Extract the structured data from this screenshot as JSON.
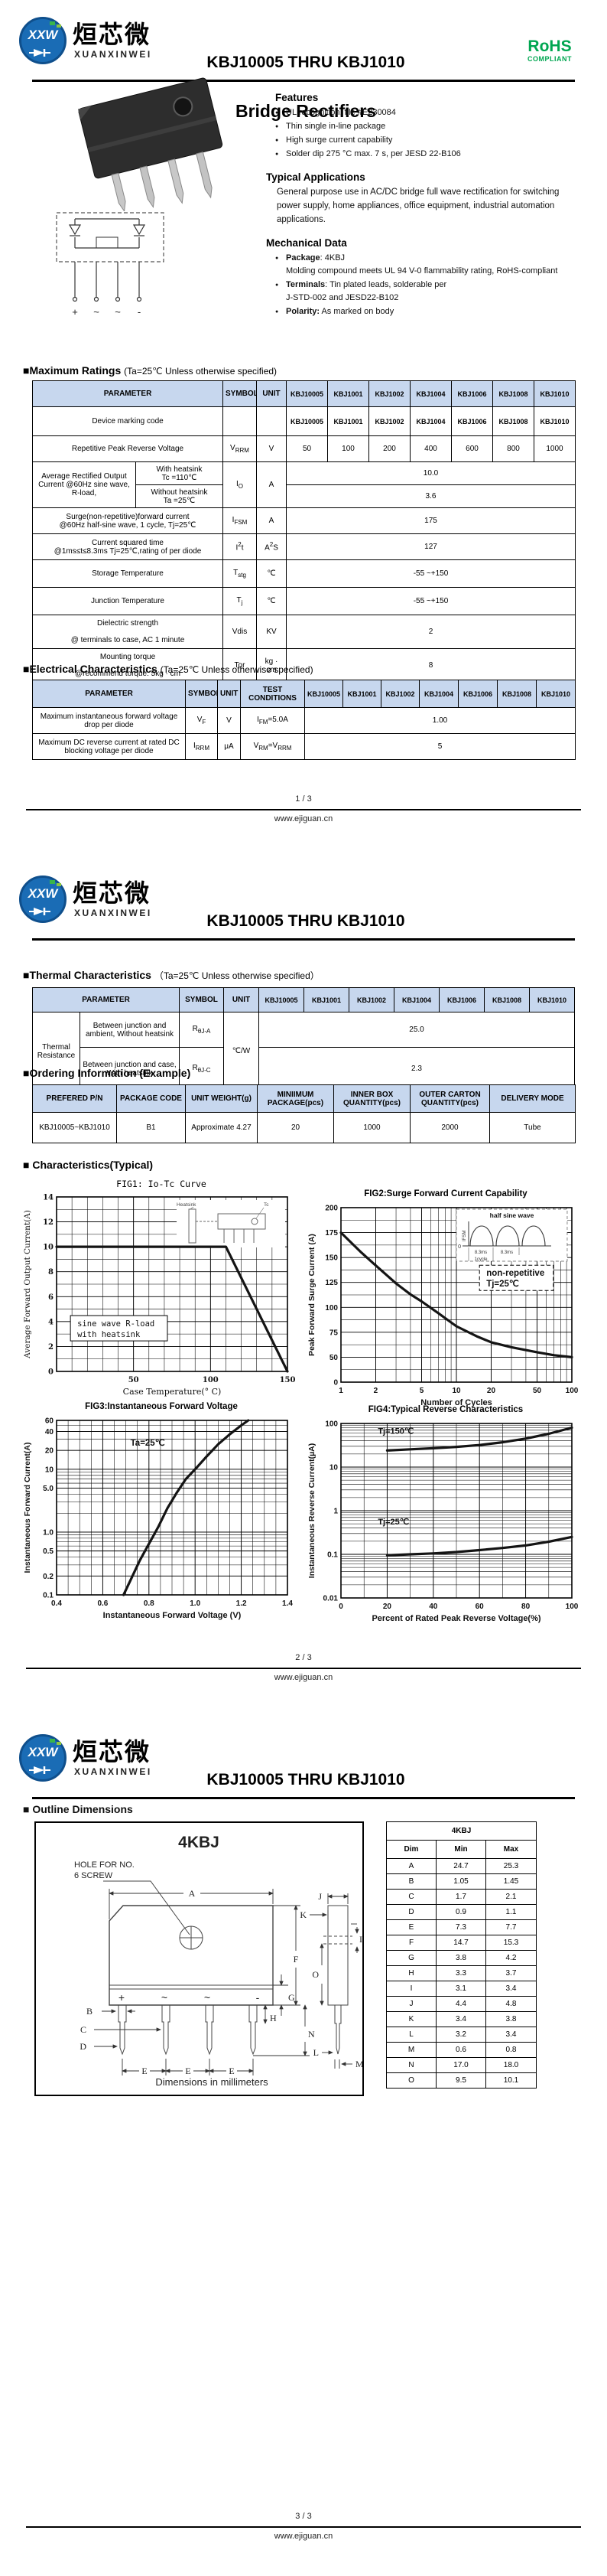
{
  "header": {
    "title": "KBJ10005 THRU KBJ1010",
    "logo": {
      "badge": "XXW",
      "cn": "烜芯微",
      "en": "XUANXINWEI"
    },
    "rohs": {
      "line1": "RoHS",
      "line2": "COMPLIANT"
    }
  },
  "footer": {
    "url": "www.ejiguan.cn",
    "pages": [
      "1 / 3",
      "2 / 3",
      "3 / 3"
    ]
  },
  "page1": {
    "product_title": "Bridge Rectifiers",
    "features": {
      "heading": "Features",
      "items": [
        "UL recognition, file #E230084",
        "Thin single in-line package",
        "High surge current capability",
        "Solder dip 275 °C max. 7 s, per JESD 22-B106"
      ]
    },
    "applications": {
      "heading": "Typical Applications",
      "text": "General purpose use in AC/DC bridge full wave rectification for switching power supply, home appliances, office equipment, industrial automation applications."
    },
    "mechanical": {
      "heading": "Mechanical Data",
      "bullets": [
        {
          "label": "Package",
          "rest": ": 4KBJ",
          "cont": "Molding compound meets UL 94 V-0 flammability rating, RoHS-compliant"
        },
        {
          "label": "Terminals",
          "rest": ": Tin plated leads, solderable per",
          "cont": "J-STD-002 and JESD22-B102"
        },
        {
          "label": "Polarity:",
          "rest": " As marked on body",
          "cont": ""
        }
      ]
    },
    "schematic": {
      "terminals": [
        "+",
        "~",
        "~",
        "-"
      ]
    },
    "max_ratings": {
      "title": "■Maximum Ratings",
      "cond": "(Ta=25℃ Unless otherwise specified)",
      "head": {
        "parameter": "PARAMETER",
        "symbol": "SYMBOL",
        "unit": "UNIT"
      },
      "parts": [
        "KBJ10005",
        "KBJ1001",
        "KBJ1002",
        "KBJ1004",
        "KBJ1006",
        "KBJ1008",
        "KBJ1010"
      ],
      "rows": {
        "marking": {
          "param": "Device marking code",
          "values": [
            "KBJ10005",
            "KBJ1001",
            "KBJ1002",
            "KBJ1004",
            "KBJ1006",
            "KBJ1008",
            "KBJ1010"
          ]
        },
        "vrrm": {
          "param": "Repetitive Peak Reverse Voltage",
          "sym": {
            "m": "V",
            "s": "RRM"
          },
          "unit": "V",
          "values": [
            "50",
            "100",
            "200",
            "400",
            "600",
            "800",
            "1000"
          ]
        },
        "io": {
          "param": "Average Rectified Output Current @60Hz sine wave, R-load,",
          "sub1a": "With heatsink",
          "sub1b": "Tc =110℃",
          "sub2a": "Without heatsink",
          "sub2b": "Ta =25℃",
          "sym": {
            "m": "I",
            "s": "O"
          },
          "unit": "A",
          "v1": "10.0",
          "v2": "3.6"
        },
        "ifsm": {
          "p1": "Surge(non-repetitive)forward current",
          "p2": "@60Hz half-sine wave, 1 cycle,  Tj=25℃",
          "sym": {
            "m": "I",
            "s": "FSM"
          },
          "unit": "A",
          "value": "175"
        },
        "i2t": {
          "p1": "Current squared time",
          "p2": "@1ms≤t≤8.3ms Tj=25℃,rating of per diode",
          "sym": {
            "m": "I",
            "sup": "2",
            "m2": "t"
          },
          "unitp": {
            "m": "A",
            "sup": "2",
            "m2": "S"
          },
          "value": "127"
        },
        "tstg": {
          "param": "Storage Temperature",
          "sym": {
            "m": "T",
            "s": "stg"
          },
          "unit": "℃",
          "value": "-55 ~+150"
        },
        "tj": {
          "param": "Junction Temperature",
          "sym": {
            "m": "T",
            "s": "j"
          },
          "unit": "℃",
          "value": "-55 ~+150"
        },
        "vdis": {
          "p1": "Dielectric strength",
          "p2": "@ terminals to case, AC 1 minute",
          "sym": "Vdis",
          "unit": "KV",
          "value": "2"
        },
        "tor": {
          "p1": "Mounting torque",
          "p2": "@recommend torque: 5kg · cm",
          "sym": "Tor",
          "unit": "kg · cm",
          "value": "8"
        }
      }
    },
    "electrical": {
      "title": "■Electrical Characteristics",
      "cond": "(Ta=25℃ Unless otherwise specified)",
      "head": {
        "parameter": "PARAMETER",
        "symbol": "SYMBOL",
        "unit": "UNIT",
        "test": "TEST CONDITIONS"
      },
      "rows": {
        "vf": {
          "param": "Maximum instantaneous forward voltage drop per diode",
          "sym": {
            "m": "V",
            "s": "F"
          },
          "unit": "V",
          "test": {
            "m": "I",
            "s": "FM",
            "post": "=5.0A"
          },
          "value": "1.00"
        },
        "irrm": {
          "param": "Maximum DC reverse current at rated DC blocking voltage per diode",
          "sym": {
            "m": "I",
            "s": "RRM"
          },
          "unit": "μA",
          "test": {
            "m": "V",
            "s": "RM",
            "post": "=V",
            "s2": "RRM"
          },
          "value": "5"
        }
      }
    }
  },
  "page2": {
    "thermal": {
      "title": "■Thermal Characteristics",
      "cond": "（Ta=25℃ Unless otherwise specified）",
      "head": {
        "parameter": "PARAMETER",
        "symbol": "SYMBOL",
        "unit": "UNIT"
      },
      "parts": [
        "KBJ10005",
        "KBJ1001",
        "KBJ1002",
        "KBJ1004",
        "KBJ1006",
        "KBJ1008",
        "KBJ1010"
      ],
      "group": "Thermal Resistance",
      "unit": "℃/W",
      "rows": {
        "rja": {
          "cond": "Between junction and ambient, Without heatsink",
          "sym": {
            "m": "R",
            "s": "θJ-A"
          },
          "value": "25.0"
        },
        "rjc": {
          "cond": "Between junction and case, With heatsink",
          "sym": {
            "m": "R",
            "s": "θJ-C"
          },
          "value": "2.3"
        }
      }
    },
    "ordering": {
      "title": "■Ordering Information (Example)",
      "head": [
        "PREFERED P/N",
        "PACKAGE CODE",
        "UNIT WEIGHT(g)",
        "MINIIMUM PACKAGE(pcs)",
        "INNER BOX QUANTITY(pcs)",
        "OUTER CARTON QUANTITY(pcs)",
        "DELIVERY MODE"
      ],
      "row": [
        "KBJ10005~KBJ1010",
        "B1",
        "Approximate 4.27",
        "20",
        "1000",
        "2000",
        "Tube"
      ]
    },
    "charts_heading": "■ Characteristics(Typical)"
  },
  "chart_data": [
    {
      "id": "fig1",
      "type": "line",
      "title": "FIG1: Io-Tc Curve",
      "title_style": "mono",
      "x": {
        "type": "linear",
        "min": 0,
        "max": 150,
        "grid_step": 10,
        "ticks": [
          50,
          100,
          150
        ],
        "label": "Case Temperature(° C)"
      },
      "y": {
        "type": "linear",
        "min": 0,
        "max": 14,
        "grid_step": 1,
        "ticks": [
          0,
          2,
          4,
          6,
          8,
          10,
          12,
          14
        ],
        "label": "Average Forward Output Current(A)"
      },
      "series": [
        {
          "name": "Io",
          "points": [
            [
              0,
              10
            ],
            [
              110,
              10
            ],
            [
              150,
              0
            ]
          ]
        }
      ],
      "annotations": [
        {
          "text_lines": [
            "sine wave R-load",
            "with heatsink"
          ],
          "x": 0.06,
          "y": 0.68,
          "box": true,
          "w": 0.42,
          "h": 0.145,
          "font": "mono"
        }
      ],
      "inset": {
        "type": "heatsink",
        "labels": [
          "Heatsink",
          "Tc"
        ]
      }
    },
    {
      "id": "fig2",
      "type": "line",
      "title": "FIG2:Surge Forward Current Capability",
      "x": {
        "type": "log",
        "min": 1,
        "max": 100,
        "ticks": [
          1,
          2,
          5,
          10,
          20,
          50,
          100
        ],
        "label": "Number of Cycles"
      },
      "y": {
        "type": "ticklist",
        "ticks": [
          0,
          50,
          75,
          100,
          125,
          150,
          175,
          200
        ],
        "grid_mids": true,
        "label": "Peak Forward Surge Current (A)"
      },
      "series": [
        {
          "name": "IFSM",
          "points": [
            [
              1,
              175
            ],
            [
              1.5,
              155
            ],
            [
              2,
              142
            ],
            [
              3,
              124
            ],
            [
              4,
              113
            ],
            [
              5,
              106
            ],
            [
              7,
              94
            ],
            [
              10,
              81
            ],
            [
              15,
              71
            ],
            [
              20,
              65
            ],
            [
              30,
              60
            ],
            [
              50,
              55
            ],
            [
              70,
              52
            ],
            [
              100,
              50
            ]
          ]
        }
      ],
      "annotations": [
        {
          "text_lines": [
            "non-repetitive",
            "Tj=25℃"
          ],
          "x": 0.6,
          "y": 0.33,
          "box": true,
          "w": 0.32,
          "h": 0.145,
          "dashed": true
        }
      ],
      "inset": {
        "type": "halfsine",
        "labels": [
          "half sine wave",
          "IFSM",
          "0",
          "8.3ms",
          "8.3ms",
          "1cycle"
        ]
      }
    },
    {
      "id": "fig3",
      "type": "line",
      "title": "FIG3:Instantaneous Forward Voltage",
      "x": {
        "type": "linear",
        "min": 0.4,
        "max": 1.4,
        "grid_step": 0.05,
        "ticks": [
          0.4,
          0.6,
          0.8,
          1.0,
          1.2,
          1.4
        ],
        "tick_labels": [
          "0.4",
          "0.6",
          "0.8",
          "1.0",
          "1.2",
          "1.4"
        ],
        "label": "Instantaneous Forward Voltage (V)"
      },
      "y": {
        "type": "log",
        "min": 0.1,
        "max": 60,
        "ticks": [
          0.1,
          0.2,
          0.5,
          1,
          5,
          10,
          20,
          40,
          60
        ],
        "tick_labels": [
          "0.1",
          "0.2",
          "0.5",
          "1.0",
          "5.0",
          "10",
          "20",
          "40",
          "60"
        ],
        "label": "Instantaneous Forward Current(A)"
      },
      "series": [
        {
          "name": "VF",
          "points": [
            [
              0.69,
              0.1
            ],
            [
              0.72,
              0.17
            ],
            [
              0.76,
              0.35
            ],
            [
              0.8,
              0.65
            ],
            [
              0.84,
              1.2
            ],
            [
              0.88,
              2.4
            ],
            [
              0.92,
              4.2
            ],
            [
              0.96,
              7.0
            ],
            [
              1.0,
              10
            ],
            [
              1.05,
              16
            ],
            [
              1.1,
              25
            ],
            [
              1.15,
              36
            ],
            [
              1.2,
              50
            ],
            [
              1.23,
              60
            ]
          ]
        }
      ],
      "annotations": [
        {
          "text_lines": [
            "Ta=25℃"
          ],
          "x": 0.32,
          "y": 0.1,
          "box": false
        }
      ]
    },
    {
      "id": "fig4",
      "type": "line",
      "title": "FIG4:Typical Reverse Characteristics",
      "x": {
        "type": "linear",
        "min": 0,
        "max": 100,
        "grid_step": 10,
        "ticks": [
          0,
          20,
          40,
          60,
          80,
          100
        ],
        "label": "Percent of Rated Peak Reverse Voltage(%)"
      },
      "y": {
        "type": "log",
        "min": 0.01,
        "max": 100,
        "ticks": [
          0.01,
          0.1,
          1,
          10,
          100
        ],
        "tick_labels": [
          "0.01",
          "0.1",
          "1",
          "10",
          "100"
        ],
        "label": "Instantaneous Reverse Current(µA)"
      },
      "series": [
        {
          "name": "Tj=150℃",
          "points": [
            [
              20,
              24
            ],
            [
              30,
              25.5
            ],
            [
              40,
              27
            ],
            [
              50,
              29
            ],
            [
              60,
              32
            ],
            [
              70,
              37
            ],
            [
              80,
              45
            ],
            [
              90,
              58
            ],
            [
              100,
              80
            ]
          ],
          "label_at": [
            0.16,
            0.06
          ]
        },
        {
          "name": "Tj=25℃",
          "points": [
            [
              20,
              0.095
            ],
            [
              30,
              0.1
            ],
            [
              40,
              0.105
            ],
            [
              50,
              0.113
            ],
            [
              60,
              0.125
            ],
            [
              70,
              0.14
            ],
            [
              80,
              0.16
            ],
            [
              90,
              0.195
            ],
            [
              100,
              0.25
            ]
          ],
          "label_at": [
            0.16,
            0.58
          ]
        }
      ],
      "annotations": []
    }
  ],
  "page3": {
    "outline": {
      "heading": "■ Outline Dimensions",
      "drawing_title": "4KBJ",
      "hole_note1": "HOLE FOR NO.",
      "hole_note2": "6 SCREW",
      "dim_note": "Dimensions in millimeters",
      "marks": [
        "+",
        "~",
        "~",
        "-"
      ],
      "table": {
        "title": "4KBJ",
        "head": [
          "Dim",
          "Min",
          "Max"
        ],
        "rows": [
          [
            "A",
            "24.7",
            "25.3"
          ],
          [
            "B",
            "1.05",
            "1.45"
          ],
          [
            "C",
            "1.7",
            "2.1"
          ],
          [
            "D",
            "0.9",
            "1.1"
          ],
          [
            "E",
            "7.3",
            "7.7"
          ],
          [
            "F",
            "14.7",
            "15.3"
          ],
          [
            "G",
            "3.8",
            "4.2"
          ],
          [
            "H",
            "3.3",
            "3.7"
          ],
          [
            "I",
            "3.1",
            "3.4"
          ],
          [
            "J",
            "4.4",
            "4.8"
          ],
          [
            "K",
            "3.4",
            "3.8"
          ],
          [
            "L",
            "3.2",
            "3.4"
          ],
          [
            "M",
            "0.6",
            "0.8"
          ],
          [
            "N",
            "17.0",
            "18.0"
          ],
          [
            "O",
            "9.5",
            "10.1"
          ]
        ]
      }
    }
  }
}
